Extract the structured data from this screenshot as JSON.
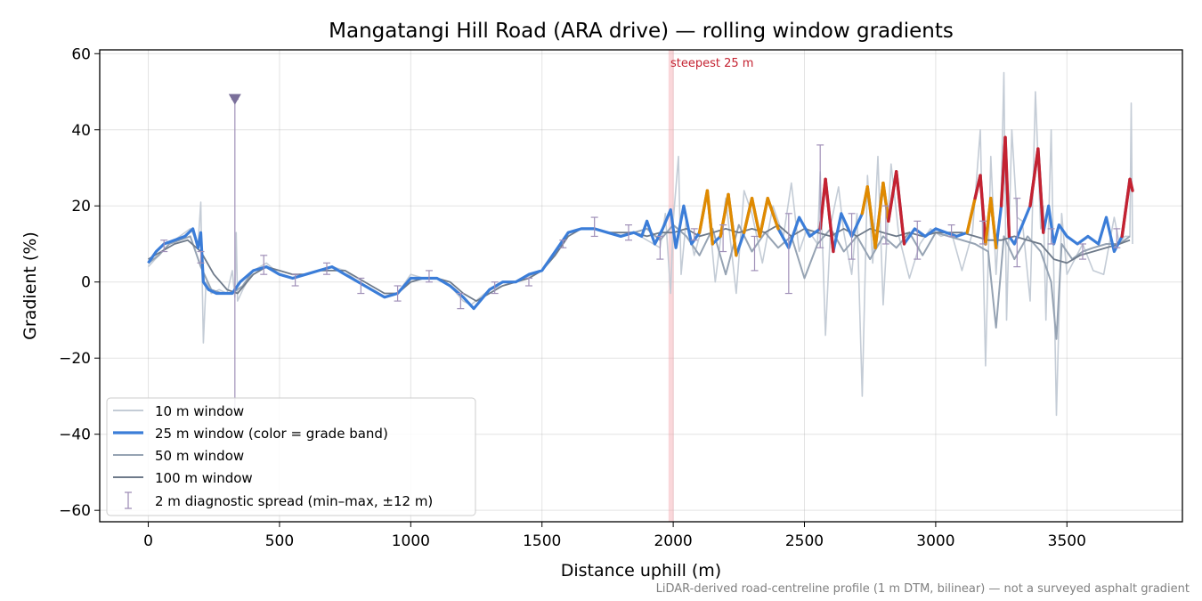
{
  "chart_data": {
    "type": "line",
    "title": "Mangatangi Hill Road (ARA drive) — rolling window gradients",
    "xlabel": "Distance uphill (m)",
    "ylabel": "Gradient (%)",
    "xlim": [
      -185,
      3940
    ],
    "ylim": [
      -63,
      61
    ],
    "xticks": [
      0,
      500,
      1000,
      1500,
      2000,
      2500,
      3000,
      3500
    ],
    "yticks": [
      -60,
      -40,
      -20,
      0,
      20,
      40,
      60
    ],
    "xtick_labels": [
      "0",
      "500",
      "1000",
      "1500",
      "2000",
      "2500",
      "3000",
      "3500"
    ],
    "ytick_labels": [
      "−60",
      "−40",
      "−20",
      "0",
      "20",
      "40",
      "60"
    ],
    "grid": true,
    "legend_position": "lower-left",
    "annotation": {
      "text": "steepest 25 m",
      "x_start": 1982,
      "x_end": 2002
    },
    "footnote": "LiDAR-derived road-centreline profile (1 m DTM, bilinear) — not a surveyed asphalt gradient",
    "grade_band_colors": {
      "normal": "#3b7dd8",
      "steep": "#e08a00",
      "very_steep": "#c42231"
    },
    "series": [
      {
        "name": "10 m window",
        "color": "#c4ccd6",
        "x": [
          0,
          40,
          80,
          120,
          160,
          190,
          200,
          210,
          220,
          240,
          270,
          300,
          320,
          330,
          335,
          340,
          360,
          400,
          450,
          500,
          550,
          600,
          650,
          700,
          750,
          800,
          850,
          900,
          950,
          1000,
          1050,
          1100,
          1150,
          1200,
          1230,
          1300,
          1400,
          1500,
          1550,
          1600,
          1650,
          1700,
          1750,
          1800,
          1850,
          1900,
          1950,
          1970,
          1990,
          2000,
          2020,
          2030,
          2050,
          2080,
          2100,
          2130,
          2160,
          2200,
          2240,
          2270,
          2300,
          2340,
          2380,
          2420,
          2450,
          2480,
          2510,
          2550,
          2560,
          2580,
          2600,
          2630,
          2650,
          2680,
          2700,
          2720,
          2740,
          2760,
          2780,
          2800,
          2830,
          2860,
          2900,
          2940,
          2980,
          3020,
          3060,
          3100,
          3140,
          3170,
          3190,
          3210,
          3230,
          3250,
          3260,
          3270,
          3290,
          3310,
          3330,
          3360,
          3380,
          3400,
          3410,
          3420,
          3440,
          3460,
          3480,
          3500,
          3530,
          3560,
          3600,
          3640,
          3680,
          3700,
          3720,
          3740,
          3745,
          3750
        ],
        "values": [
          4,
          7,
          10,
          12,
          14,
          10,
          21,
          -16,
          0,
          -3,
          -2,
          -3,
          3,
          -4,
          13,
          -5,
          -2,
          3,
          5,
          2,
          1,
          2,
          3,
          4,
          3,
          0,
          -2,
          -4,
          -3,
          2,
          1,
          1,
          -1,
          -5,
          -6,
          -2,
          0,
          3,
          8,
          13,
          14,
          14,
          13,
          12,
          13,
          11,
          9,
          18,
          -3,
          16,
          33,
          2,
          17,
          7,
          12,
          23,
          0,
          22,
          -3,
          24,
          18,
          5,
          20,
          12,
          26,
          8,
          14,
          10,
          29,
          -14,
          15,
          25,
          13,
          2,
          18,
          -30,
          28,
          5,
          33,
          -6,
          31,
          12,
          1,
          10,
          14,
          12,
          13,
          3,
          13,
          40,
          -22,
          33,
          2,
          25,
          55,
          -10,
          40,
          17,
          16,
          -5,
          50,
          14,
          20,
          -10,
          40,
          -35,
          18,
          2,
          6,
          10,
          3,
          2,
          17,
          10,
          12,
          12,
          47,
          10
        ]
      },
      {
        "name": "25 m window (color = grade band)",
        "color": "#3b7dd8",
        "x": [
          0,
          30,
          60,
          100,
          140,
          170,
          190,
          200,
          210,
          230,
          260,
          290,
          320,
          350,
          400,
          450,
          500,
          550,
          600,
          650,
          700,
          750,
          800,
          850,
          900,
          950,
          1000,
          1050,
          1100,
          1150,
          1200,
          1240,
          1300,
          1350,
          1400,
          1450,
          1500,
          1550,
          1600,
          1650,
          1700,
          1750,
          1800,
          1850,
          1880,
          1900,
          1930,
          1960,
          1990,
          2010,
          2040,
          2070,
          2100,
          2130,
          2150,
          2180,
          2210,
          2240,
          2270,
          2300,
          2330,
          2360,
          2400,
          2440,
          2480,
          2520,
          2560,
          2580,
          2610,
          2640,
          2680,
          2720,
          2740,
          2770,
          2800,
          2820,
          2850,
          2880,
          2920,
          2960,
          3000,
          3040,
          3080,
          3120,
          3150,
          3170,
          3190,
          3210,
          3230,
          3250,
          3265,
          3280,
          3300,
          3330,
          3360,
          3390,
          3410,
          3430,
          3450,
          3470,
          3500,
          3540,
          3580,
          3620,
          3650,
          3680,
          3710,
          3740,
          3750
        ],
        "values": [
          5,
          8,
          10,
          11,
          12,
          14,
          9,
          13,
          0,
          -2,
          -3,
          -3,
          -3,
          0,
          3,
          4,
          2,
          1,
          2,
          3,
          4,
          2,
          0,
          -2,
          -4,
          -3,
          1,
          1,
          1,
          -1,
          -4,
          -7,
          -2,
          0,
          0,
          2,
          3,
          8,
          13,
          14,
          14,
          13,
          12,
          13,
          12,
          16,
          10,
          14,
          19,
          9,
          20,
          10,
          13,
          24,
          10,
          12,
          23,
          7,
          13,
          22,
          12,
          22,
          14,
          9,
          17,
          12,
          14,
          27,
          8,
          18,
          12,
          18,
          25,
          9,
          26,
          16,
          29,
          10,
          14,
          12,
          14,
          13,
          12,
          13,
          22,
          28,
          10,
          22,
          9,
          20,
          38,
          12,
          10,
          15,
          20,
          35,
          13,
          20,
          10,
          15,
          12,
          10,
          12,
          10,
          17,
          8,
          12,
          27,
          24
        ]
      },
      {
        "name": "50 m window",
        "color": "#96a3b3",
        "x": [
          0,
          40,
          80,
          120,
          160,
          200,
          240,
          280,
          320,
          360,
          400,
          450,
          500,
          550,
          600,
          650,
          700,
          750,
          800,
          850,
          900,
          950,
          1000,
          1050,
          1100,
          1150,
          1200,
          1240,
          1300,
          1350,
          1400,
          1450,
          1500,
          1550,
          1600,
          1650,
          1700,
          1750,
          1800,
          1850,
          1900,
          1950,
          2000,
          2050,
          2100,
          2150,
          2200,
          2250,
          2300,
          2350,
          2400,
          2450,
          2500,
          2550,
          2600,
          2650,
          2700,
          2750,
          2800,
          2850,
          2900,
          2950,
          3000,
          3050,
          3100,
          3150,
          3200,
          3230,
          3260,
          3300,
          3350,
          3400,
          3440,
          3460,
          3480,
          3520,
          3560,
          3600,
          3650,
          3700,
          3740
        ],
        "values": [
          5,
          7,
          10,
          11,
          12,
          4,
          -2,
          -3,
          -3,
          -1,
          3,
          4,
          2,
          1,
          2,
          3,
          4,
          2,
          0,
          -2,
          -4,
          -3,
          1,
          1,
          1,
          -1,
          -4,
          -7,
          -2,
          0,
          0,
          2,
          3,
          8,
          13,
          14,
          14,
          13,
          12,
          13,
          14,
          11,
          15,
          12,
          7,
          14,
          2,
          15,
          8,
          13,
          9,
          12,
          1,
          10,
          14,
          8,
          12,
          6,
          12,
          9,
          13,
          7,
          13,
          12,
          11,
          10,
          8,
          -12,
          12,
          6,
          12,
          8,
          0,
          -15,
          10,
          6,
          8,
          9,
          10,
          10,
          12
        ]
      },
      {
        "name": "100 m window",
        "color": "#6e7a8a",
        "x": [
          0,
          50,
          100,
          150,
          200,
          250,
          300,
          340,
          400,
          450,
          500,
          550,
          600,
          650,
          700,
          750,
          800,
          850,
          900,
          950,
          1000,
          1050,
          1100,
          1150,
          1200,
          1250,
          1300,
          1350,
          1400,
          1450,
          1500,
          1550,
          1600,
          1650,
          1700,
          1750,
          1800,
          1850,
          1900,
          1950,
          2000,
          2050,
          2100,
          2150,
          2200,
          2250,
          2300,
          2350,
          2400,
          2450,
          2500,
          2550,
          2600,
          2650,
          2700,
          2750,
          2800,
          2850,
          2900,
          2950,
          3000,
          3050,
          3100,
          3150,
          3200,
          3250,
          3300,
          3350,
          3400,
          3450,
          3500,
          3550,
          3600,
          3650,
          3700,
          3740
        ],
        "values": [
          6,
          8,
          10,
          11,
          8,
          2,
          -2,
          -3,
          2,
          4,
          3,
          2,
          2,
          3,
          3,
          3,
          1,
          -1,
          -3,
          -3,
          0,
          1,
          1,
          0,
          -3,
          -5,
          -3,
          -1,
          0,
          1,
          3,
          7,
          12,
          14,
          14,
          13,
          13,
          13,
          12,
          13,
          13,
          14,
          12,
          13,
          14,
          13,
          14,
          13,
          15,
          12,
          14,
          13,
          12,
          14,
          12,
          14,
          13,
          12,
          13,
          12,
          13,
          13,
          13,
          12,
          11,
          11,
          12,
          11,
          10,
          6,
          5,
          7,
          8,
          9,
          10,
          11
        ]
      }
    ],
    "diagnostic_spread": {
      "name": "2 m diagnostic spread (min–max, ±12 m)",
      "color": "#a090b8",
      "x": [
        60,
        200,
        330,
        440,
        560,
        680,
        810,
        950,
        1070,
        1190,
        1320,
        1450,
        1580,
        1700,
        1830,
        1950,
        2080,
        2190,
        2310,
        2440,
        2560,
        2680,
        2810,
        2930,
        3060,
        3180,
        3310,
        3440,
        3560,
        3690
      ],
      "low": [
        8,
        5,
        -35,
        2,
        -1,
        2,
        -3,
        -5,
        0,
        -7,
        -3,
        -1,
        9,
        12,
        11,
        6,
        11,
        8,
        3,
        -3,
        9,
        6,
        10,
        6,
        12,
        10,
        4,
        10,
        6,
        9
      ],
      "high": [
        11,
        8,
        48,
        7,
        2,
        5,
        1,
        -1,
        3,
        -3,
        0,
        1,
        11,
        17,
        15,
        12,
        14,
        15,
        12,
        18,
        36,
        18,
        20,
        16,
        15,
        16,
        22,
        14,
        10,
        14
      ]
    },
    "diagnostic_marker": {
      "x": 330,
      "y": 48
    }
  }
}
